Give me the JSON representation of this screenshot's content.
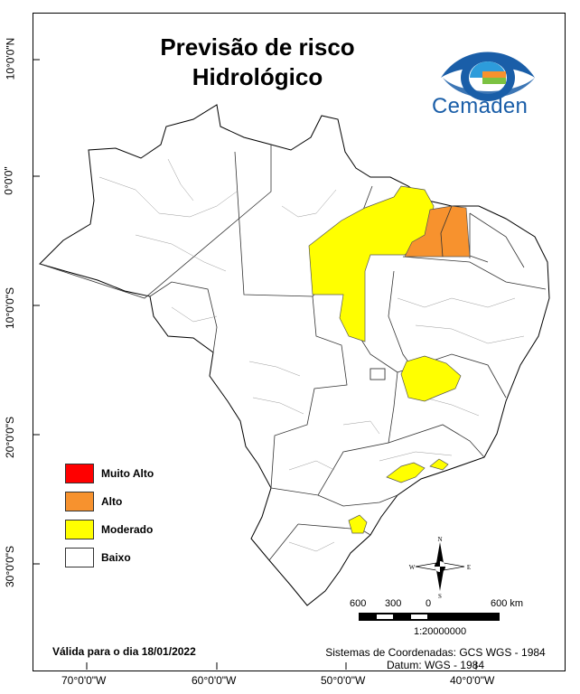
{
  "title_line1": "Previsão de risco",
  "title_line2": "Hidrológico",
  "brand": "Cemaden",
  "lat_labels": [
    "10°0'0\"N",
    "0°0'0\"",
    "10°0'0\"S",
    "20°0'0\"S",
    "30°0'0\"S"
  ],
  "lon_labels": [
    "70°0'0\"W",
    "60°0'0\"W",
    "50°0'0\"W",
    "40°0'0\"W"
  ],
  "legend": [
    {
      "label": "Muito Alto",
      "color": "#ff0000"
    },
    {
      "label": "Alto",
      "color": "#f7922e"
    },
    {
      "label": "Moderado",
      "color": "#ffff00"
    },
    {
      "label": "Baixo",
      "color": "#ffffff"
    }
  ],
  "compass": {
    "n": "N",
    "s": "S",
    "e": "E",
    "w": "W",
    "icon": "compass-rose-icon"
  },
  "scale": {
    "labels": [
      "600",
      "300",
      "0",
      "600 km"
    ],
    "ratio": "1:20000000"
  },
  "valid_text": "Válida para o dia 18/01/2022",
  "coord_system": "Sistemas de Coordenadas: GCS WGS - 1984",
  "datum": "Datum: WGS - 1984"
}
